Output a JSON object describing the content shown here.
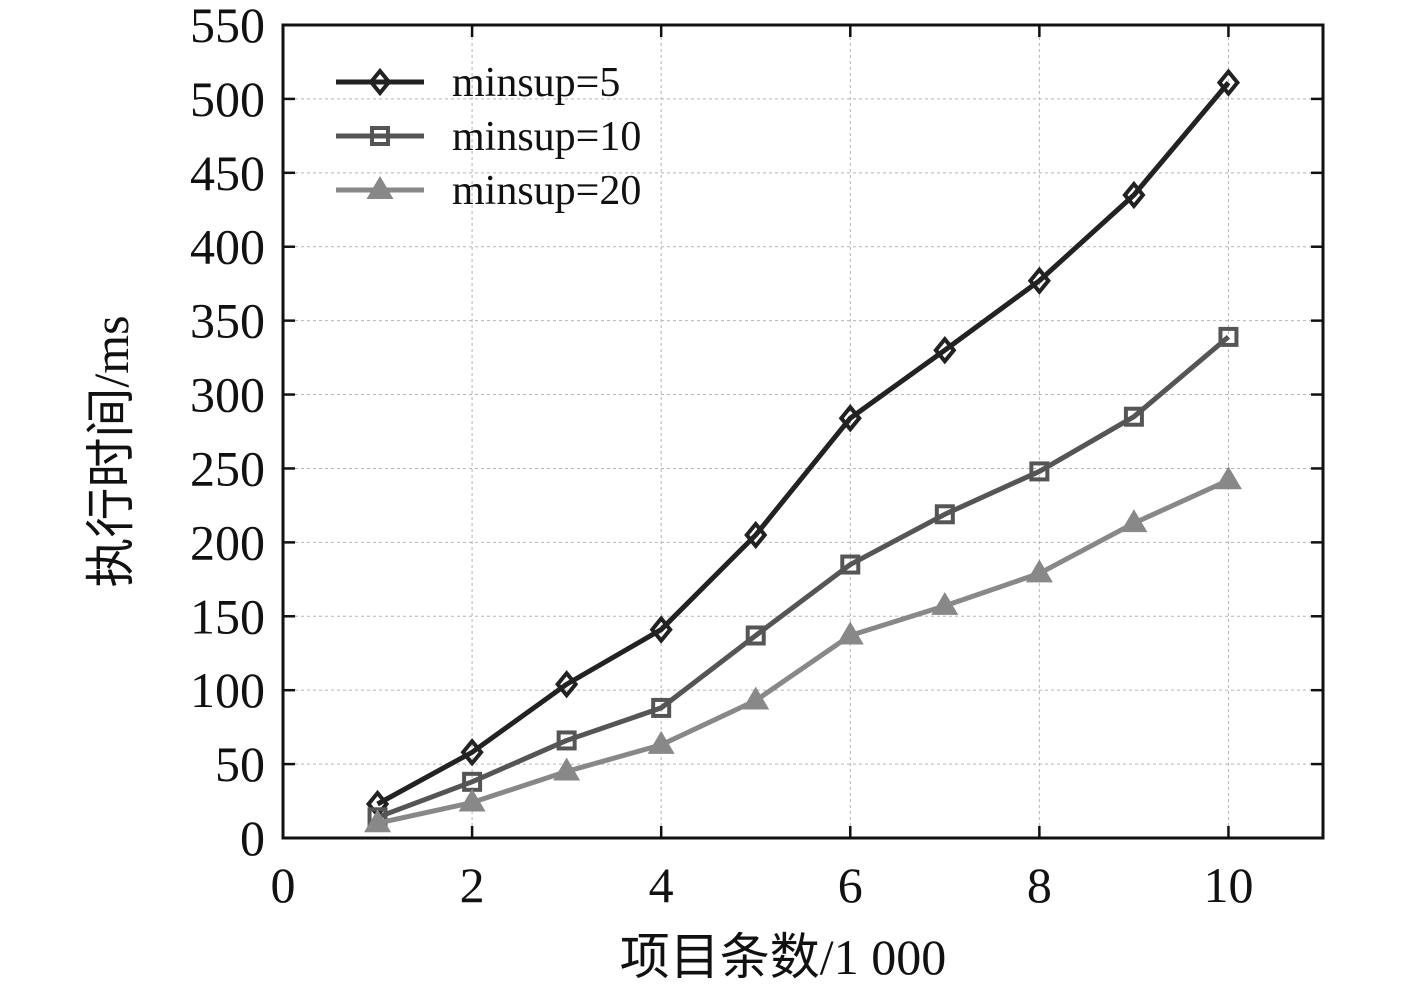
{
  "chart_data": {
    "type": "line",
    "title": "",
    "xlabel": "项目条数/1 000",
    "ylabel": "执行时间/ms",
    "xlim": [
      0,
      11
    ],
    "ylim": [
      0,
      550
    ],
    "xticks": [
      0,
      2,
      4,
      6,
      8,
      10
    ],
    "yticks": [
      0,
      50,
      100,
      150,
      200,
      250,
      300,
      350,
      400,
      450,
      500,
      550
    ],
    "grid": true,
    "legend_position": "top-left",
    "x": [
      1,
      2,
      3,
      4,
      5,
      6,
      7,
      8,
      9,
      10
    ],
    "series": [
      {
        "name": "minsup=5",
        "marker": "diamond",
        "color": "#222222",
        "values": [
          23,
          58,
          104,
          141,
          205,
          284,
          330,
          377,
          435,
          511
        ]
      },
      {
        "name": "minsup=10",
        "marker": "square",
        "color": "#555555",
        "values": [
          14,
          38,
          66,
          88,
          137,
          185,
          219,
          248,
          285,
          339
        ]
      },
      {
        "name": "minsup=20",
        "marker": "triangle",
        "color": "#888888",
        "values": [
          10,
          24,
          45,
          63,
          93,
          137,
          157,
          179,
          213,
          242
        ]
      }
    ]
  }
}
